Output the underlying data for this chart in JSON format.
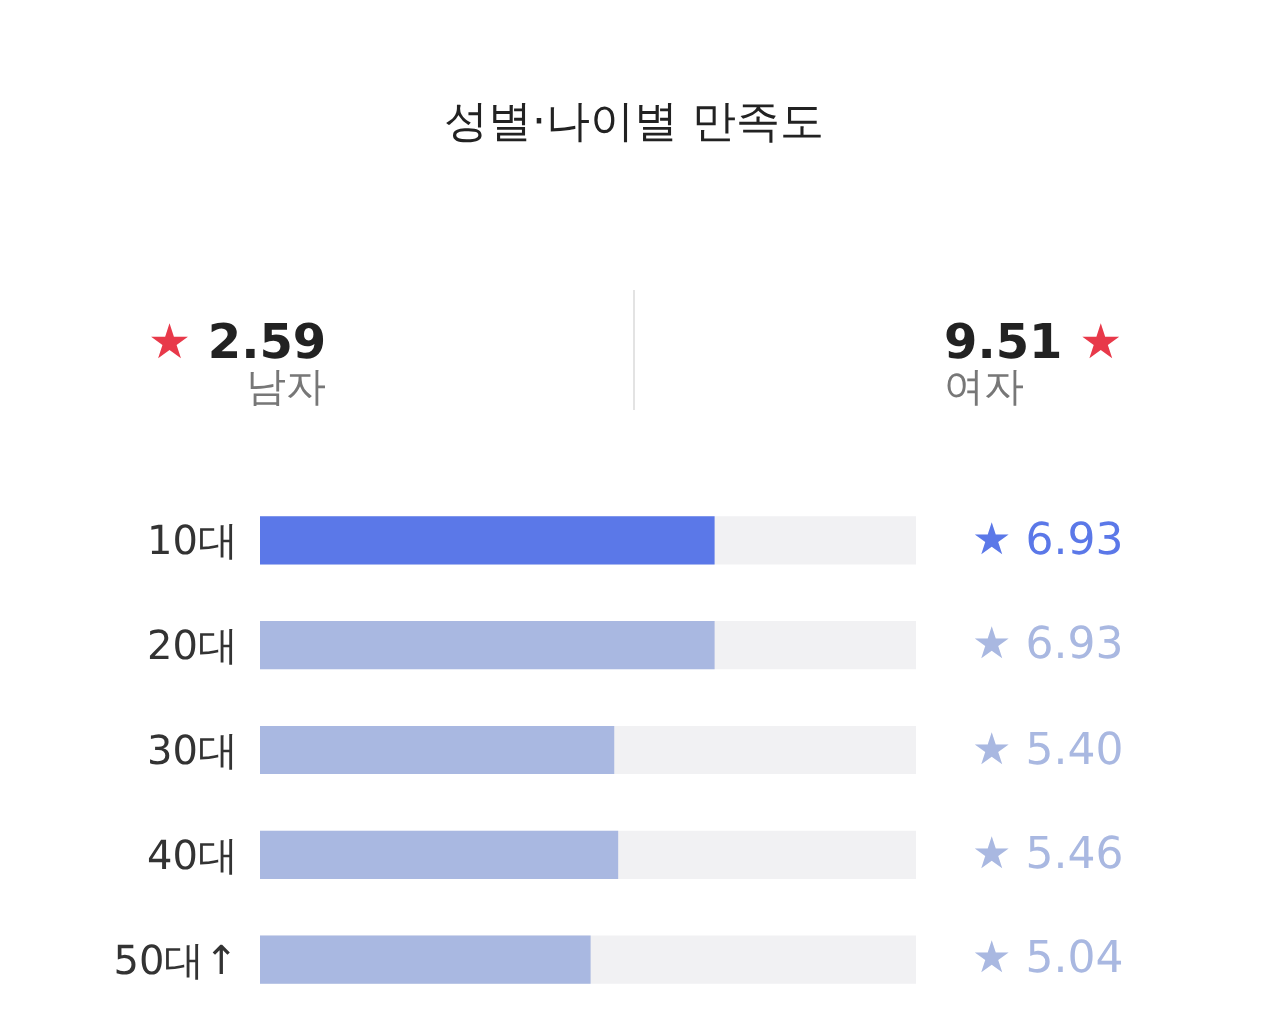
{
  "chart_data": {
    "type": "bar",
    "title": "성별·나이별 만족도",
    "orientation": "horizontal",
    "categories": [
      "10대",
      "20대",
      "30대",
      "40대",
      "50대↑"
    ],
    "values": [
      6.93,
      6.93,
      5.4,
      5.46,
      5.04
    ],
    "colors": [
      "#5b78e8",
      "#a9b8e1",
      "#a9b8e1",
      "#a9b8e1",
      "#a9b8e1"
    ],
    "xlim": [
      0,
      10
    ],
    "tick_labels": "y",
    "value_labels": [
      "★ 6.93",
      "★ 6.93",
      "★ 5.40",
      "★ 5.46",
      "★ 5.04"
    ],
    "annotations": [
      "★ 2.59",
      "남자",
      "9.51 ★",
      "여자"
    ]
  }
}
